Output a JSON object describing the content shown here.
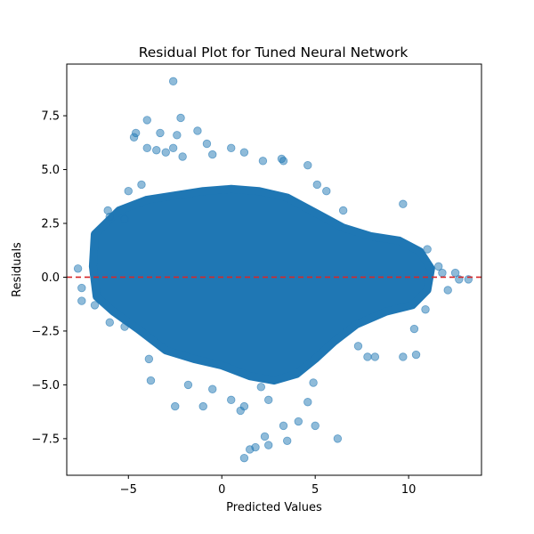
{
  "chart_data": {
    "type": "scatter",
    "title": "Residual Plot for Tuned Neural Network",
    "xlabel": "Predicted Values",
    "ylabel": "Residuals",
    "xlim": [
      -8.3,
      13.9
    ],
    "ylim": [
      -9.2,
      9.9
    ],
    "xticks": [
      -5,
      0,
      5,
      10
    ],
    "xtick_labels": [
      "−5",
      "0",
      "5",
      "10"
    ],
    "yticks": [
      -7.5,
      -5.0,
      -2.5,
      0.0,
      2.5,
      5.0,
      7.5
    ],
    "ytick_labels": [
      "−7.5",
      "−5.0",
      "−2.5",
      "0.0",
      "2.5",
      "5.0",
      "7.5"
    ],
    "grid": false,
    "legend": "none",
    "point_color": "#1f77b4",
    "point_alpha": 0.5,
    "reference_line": {
      "y": 0,
      "color": "#d62728",
      "style": "dashed"
    },
    "points": [
      {
        "x": -2.6,
        "y": 9.1
      },
      {
        "x": -2.2,
        "y": 7.4
      },
      {
        "x": -4.0,
        "y": 7.3
      },
      {
        "x": -4.6,
        "y": 6.7
      },
      {
        "x": -4.7,
        "y": 6.5
      },
      {
        "x": -1.3,
        "y": 6.8
      },
      {
        "x": -3.3,
        "y": 6.7
      },
      {
        "x": -2.4,
        "y": 6.6
      },
      {
        "x": -4.0,
        "y": 6.0
      },
      {
        "x": -3.5,
        "y": 5.9
      },
      {
        "x": -2.6,
        "y": 6.0
      },
      {
        "x": -0.8,
        "y": 6.2
      },
      {
        "x": -3.0,
        "y": 5.8
      },
      {
        "x": -2.1,
        "y": 5.6
      },
      {
        "x": 0.5,
        "y": 6.0
      },
      {
        "x": -0.5,
        "y": 5.7
      },
      {
        "x": 1.2,
        "y": 5.8
      },
      {
        "x": 3.2,
        "y": 5.5
      },
      {
        "x": 3.3,
        "y": 5.4
      },
      {
        "x": 4.6,
        "y": 5.2
      },
      {
        "x": 2.2,
        "y": 5.4
      },
      {
        "x": -4.3,
        "y": 4.3
      },
      {
        "x": -5.0,
        "y": 4.0
      },
      {
        "x": 5.1,
        "y": 4.3
      },
      {
        "x": 5.6,
        "y": 4.0
      },
      {
        "x": 9.7,
        "y": 3.4
      },
      {
        "x": -6.1,
        "y": 3.1
      },
      {
        "x": -6.0,
        "y": 2.8
      },
      {
        "x": -5.2,
        "y": 2.7
      },
      {
        "x": 6.5,
        "y": 3.1
      },
      {
        "x": 11.0,
        "y": 1.3
      },
      {
        "x": 11.6,
        "y": 0.5
      },
      {
        "x": 11.8,
        "y": 0.2
      },
      {
        "x": 12.5,
        "y": 0.2
      },
      {
        "x": 12.7,
        "y": -0.1
      },
      {
        "x": 13.2,
        "y": -0.1
      },
      {
        "x": 12.1,
        "y": -0.6
      },
      {
        "x": 10.9,
        "y": -1.5
      },
      {
        "x": 10.3,
        "y": -2.4
      },
      {
        "x": 10.4,
        "y": -3.6
      },
      {
        "x": 9.7,
        "y": -3.7
      },
      {
        "x": 8.2,
        "y": -3.7
      },
      {
        "x": 7.8,
        "y": -3.7
      },
      {
        "x": 7.3,
        "y": -3.2
      },
      {
        "x": -7.7,
        "y": 0.4
      },
      {
        "x": -7.5,
        "y": -0.5
      },
      {
        "x": -7.5,
        "y": -1.1
      },
      {
        "x": -6.8,
        "y": -1.3
      },
      {
        "x": -6.0,
        "y": -2.1
      },
      {
        "x": -5.2,
        "y": -2.3
      },
      {
        "x": -3.9,
        "y": -3.8
      },
      {
        "x": -3.8,
        "y": -4.8
      },
      {
        "x": -2.5,
        "y": -6.0
      },
      {
        "x": -1.0,
        "y": -6.0
      },
      {
        "x": -1.8,
        "y": -5.0
      },
      {
        "x": -0.5,
        "y": -5.2
      },
      {
        "x": 0.5,
        "y": -5.7
      },
      {
        "x": 1.2,
        "y": -6.0
      },
      {
        "x": 1.0,
        "y": -6.2
      },
      {
        "x": 1.5,
        "y": -8.0
      },
      {
        "x": 1.2,
        "y": -8.4
      },
      {
        "x": 1.8,
        "y": -7.9
      },
      {
        "x": 2.3,
        "y": -7.4
      },
      {
        "x": 2.5,
        "y": -7.8
      },
      {
        "x": 3.5,
        "y": -7.6
      },
      {
        "x": 3.3,
        "y": -6.9
      },
      {
        "x": 4.1,
        "y": -6.7
      },
      {
        "x": 4.6,
        "y": -5.8
      },
      {
        "x": 5.0,
        "y": -6.9
      },
      {
        "x": 6.2,
        "y": -7.5
      },
      {
        "x": 4.9,
        "y": -4.9
      },
      {
        "x": 2.5,
        "y": -5.7
      },
      {
        "x": 2.1,
        "y": -5.1
      }
    ]
  }
}
